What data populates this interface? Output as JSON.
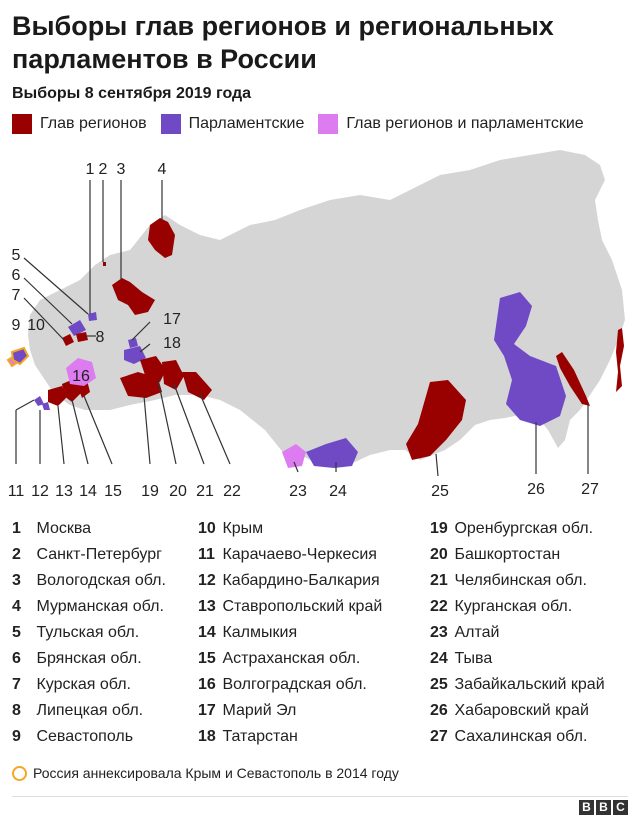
{
  "title": "Выборы глав регионов и региональных парламентов в России",
  "subtitle": "Выборы 8 сентября 2019 года",
  "legend": [
    {
      "label": "Глав регионов",
      "color": "#990000"
    },
    {
      "label": "Парламентские",
      "color": "#6f4ac4"
    },
    {
      "label": "Глав регионов и парламентские",
      "color": "#dd7bf0"
    }
  ],
  "colors": {
    "governor": "#990000",
    "parliament": "#6f4ac4",
    "both": "#dd7bf0",
    "land": "#d5d5d5",
    "crimea_outline": "#f5a623"
  },
  "map_numbers": [
    "1",
    "2",
    "3",
    "4",
    "5",
    "6",
    "7",
    "8",
    "9",
    "10",
    "11",
    "12",
    "13",
    "14",
    "15",
    "16",
    "17",
    "18",
    "19",
    "20",
    "21",
    "22",
    "23",
    "24",
    "25",
    "26",
    "27"
  ],
  "regions": [
    {
      "num": "1",
      "name": "Москва",
      "type": "parliament"
    },
    {
      "num": "2",
      "name": "Санкт-Петербург",
      "type": "governor"
    },
    {
      "num": "3",
      "name": "Вологодская обл.",
      "type": "governor"
    },
    {
      "num": "4",
      "name": "Мурманская обл.",
      "type": "governor"
    },
    {
      "num": "5",
      "name": "Тульская обл.",
      "type": "parliament"
    },
    {
      "num": "6",
      "name": "Брянская обл.",
      "type": "parliament"
    },
    {
      "num": "7",
      "name": "Курская обл.",
      "type": "governor"
    },
    {
      "num": "8",
      "name": "Липецкая обл.",
      "type": "governor"
    },
    {
      "num": "9",
      "name": "Севастополь",
      "type": "both"
    },
    {
      "num": "10",
      "name": "Крым",
      "type": "parliament"
    },
    {
      "num": "11",
      "name": "Карачаево-Черкесия",
      "type": "parliament"
    },
    {
      "num": "12",
      "name": "Кабардино-Балкария",
      "type": "parliament"
    },
    {
      "num": "13",
      "name": "Ставропольский край",
      "type": "governor"
    },
    {
      "num": "14",
      "name": "Калмыкия",
      "type": "governor"
    },
    {
      "num": "15",
      "name": "Астраханская обл.",
      "type": "governor"
    },
    {
      "num": "16",
      "name": "Волгоградская обл.",
      "type": "both"
    },
    {
      "num": "17",
      "name": "Марий Эл",
      "type": "parliament"
    },
    {
      "num": "18",
      "name": "Татарстан",
      "type": "parliament"
    },
    {
      "num": "19",
      "name": "Оренбургская обл.",
      "type": "governor"
    },
    {
      "num": "20",
      "name": "Башкортостан",
      "type": "governor"
    },
    {
      "num": "21",
      "name": "Челябинская обл.",
      "type": "governor"
    },
    {
      "num": "22",
      "name": "Курганская обл.",
      "type": "governor"
    },
    {
      "num": "23",
      "name": "Алтай",
      "type": "both"
    },
    {
      "num": "24",
      "name": "Тыва",
      "type": "parliament"
    },
    {
      "num": "25",
      "name": "Забайкальский край",
      "type": "governor"
    },
    {
      "num": "26",
      "name": "Хабаровский край",
      "type": "parliament"
    },
    {
      "num": "27",
      "name": "Сахалинская обл.",
      "type": "governor"
    }
  ],
  "note": "Россия аннексировала Крым и Севастополь в 2014 году",
  "logo": [
    "B",
    "B",
    "C"
  ]
}
